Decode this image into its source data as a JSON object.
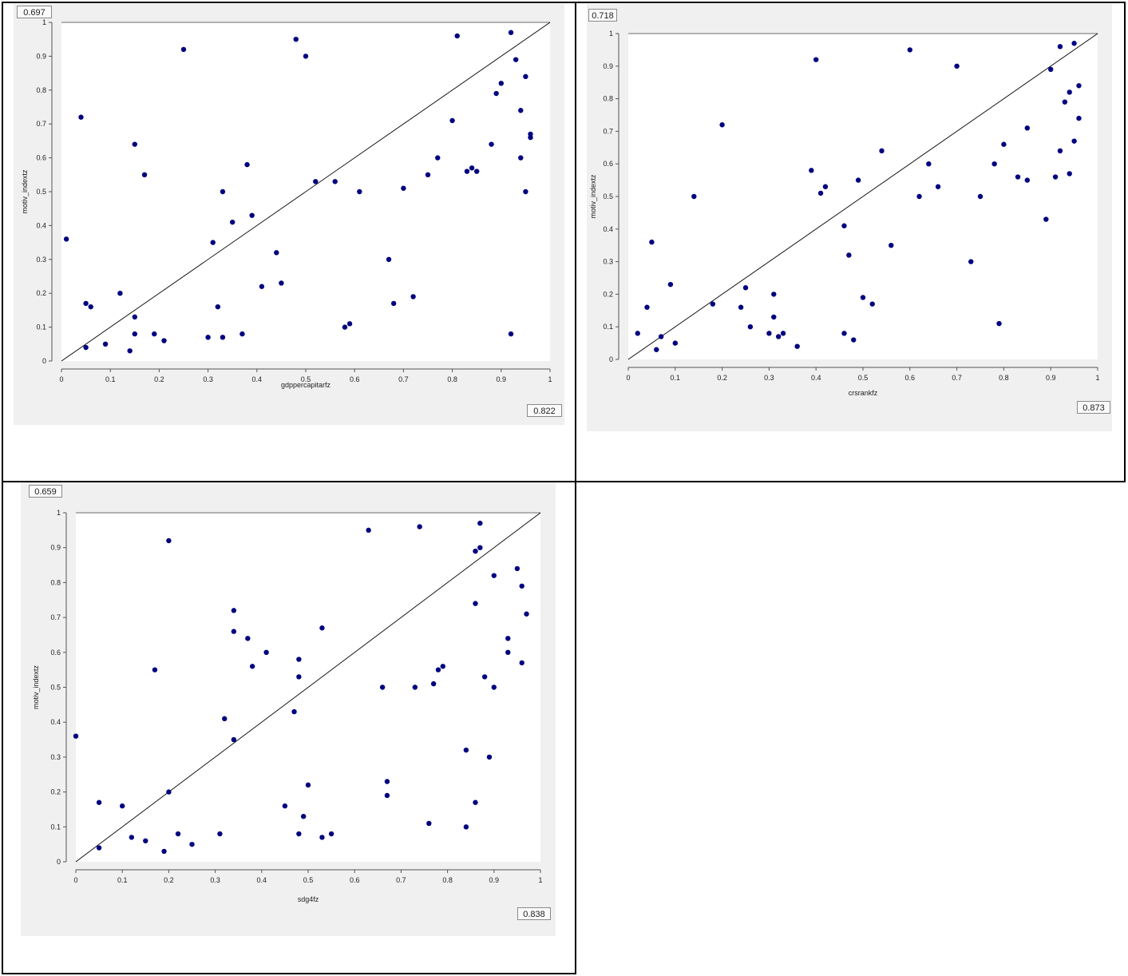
{
  "colors": {
    "point": "#00007f",
    "line": "#000000",
    "panel_bg": "#f0f0f0",
    "plot_bg": "#ffffff",
    "border": "#000000"
  },
  "panels": [
    {
      "corner_value": "0.697",
      "r_value": "0.822",
      "chart_data": {
        "type": "scatter",
        "xlabel": "gdppercapitarfz",
        "ylabel": "motiv_indextz",
        "xlim": [
          0,
          1
        ],
        "ylim": [
          0,
          1
        ],
        "x_ticks": [
          "0",
          "0.1",
          "0.2",
          "0.3",
          "0.4",
          "0.5",
          "0.6",
          "0.7",
          "0.8",
          "0.9",
          "1"
        ],
        "y_ticks": [
          "0",
          "0.1",
          "0.2",
          "0.3",
          "0.4",
          "0.5",
          "0.6",
          "0.7",
          "0.8",
          "0.9",
          "1"
        ],
        "reference_line": [
          [
            0,
            0
          ],
          [
            1,
            1
          ]
        ],
        "points": [
          [
            0.01,
            0.36
          ],
          [
            0.04,
            0.72
          ],
          [
            0.05,
            0.17
          ],
          [
            0.05,
            0.04
          ],
          [
            0.06,
            0.16
          ],
          [
            0.09,
            0.05
          ],
          [
            0.12,
            0.2
          ],
          [
            0.14,
            0.03
          ],
          [
            0.15,
            0.64
          ],
          [
            0.15,
            0.13
          ],
          [
            0.15,
            0.08
          ],
          [
            0.17,
            0.55
          ],
          [
            0.19,
            0.08
          ],
          [
            0.21,
            0.06
          ],
          [
            0.25,
            0.92
          ],
          [
            0.3,
            0.07
          ],
          [
            0.31,
            0.35
          ],
          [
            0.32,
            0.16
          ],
          [
            0.33,
            0.5
          ],
          [
            0.33,
            0.07
          ],
          [
            0.35,
            0.41
          ],
          [
            0.37,
            0.08
          ],
          [
            0.38,
            0.58
          ],
          [
            0.39,
            0.43
          ],
          [
            0.41,
            0.22
          ],
          [
            0.44,
            0.32
          ],
          [
            0.45,
            0.23
          ],
          [
            0.48,
            0.95
          ],
          [
            0.5,
            0.9
          ],
          [
            0.52,
            0.53
          ],
          [
            0.56,
            0.53
          ],
          [
            0.58,
            0.1
          ],
          [
            0.59,
            0.11
          ],
          [
            0.61,
            0.5
          ],
          [
            0.67,
            0.3
          ],
          [
            0.68,
            0.17
          ],
          [
            0.7,
            0.51
          ],
          [
            0.72,
            0.19
          ],
          [
            0.75,
            0.55
          ],
          [
            0.77,
            0.6
          ],
          [
            0.8,
            0.71
          ],
          [
            0.81,
            0.96
          ],
          [
            0.83,
            0.56
          ],
          [
            0.84,
            0.57
          ],
          [
            0.85,
            0.56
          ],
          [
            0.88,
            0.64
          ],
          [
            0.89,
            0.79
          ],
          [
            0.9,
            0.82
          ],
          [
            0.92,
            0.97
          ],
          [
            0.92,
            0.08
          ],
          [
            0.93,
            0.89
          ],
          [
            0.94,
            0.74
          ],
          [
            0.94,
            0.6
          ],
          [
            0.95,
            0.84
          ],
          [
            0.95,
            0.5
          ],
          [
            0.96,
            0.67
          ],
          [
            0.96,
            0.66
          ]
        ]
      }
    },
    {
      "corner_value": "0.718",
      "r_value": "0.873",
      "chart_data": {
        "type": "scatter",
        "xlabel": "crsrankfz",
        "ylabel": "motiv_indextz",
        "xlim": [
          0,
          1
        ],
        "ylim": [
          0,
          1
        ],
        "x_ticks": [
          "0",
          "0.1",
          "0.2",
          "0.3",
          "0.4",
          "0.5",
          "0.6",
          "0.7",
          "0.8",
          "0.9",
          "1"
        ],
        "y_ticks": [
          "0",
          "0.1",
          "0.2",
          "0.3",
          "0.4",
          "0.5",
          "0.6",
          "0.7",
          "0.8",
          "0.9",
          "1"
        ],
        "reference_line": [
          [
            0,
            0
          ],
          [
            1,
            1
          ]
        ],
        "points": [
          [
            0.02,
            0.08
          ],
          [
            0.04,
            0.16
          ],
          [
            0.05,
            0.36
          ],
          [
            0.06,
            0.03
          ],
          [
            0.07,
            0.07
          ],
          [
            0.09,
            0.23
          ],
          [
            0.1,
            0.05
          ],
          [
            0.14,
            0.5
          ],
          [
            0.18,
            0.17
          ],
          [
            0.2,
            0.72
          ],
          [
            0.24,
            0.16
          ],
          [
            0.25,
            0.22
          ],
          [
            0.26,
            0.1
          ],
          [
            0.3,
            0.08
          ],
          [
            0.31,
            0.2
          ],
          [
            0.31,
            0.13
          ],
          [
            0.32,
            0.07
          ],
          [
            0.33,
            0.08
          ],
          [
            0.36,
            0.04
          ],
          [
            0.39,
            0.58
          ],
          [
            0.4,
            0.92
          ],
          [
            0.41,
            0.51
          ],
          [
            0.42,
            0.53
          ],
          [
            0.46,
            0.41
          ],
          [
            0.46,
            0.08
          ],
          [
            0.47,
            0.32
          ],
          [
            0.48,
            0.06
          ],
          [
            0.49,
            0.55
          ],
          [
            0.5,
            0.19
          ],
          [
            0.52,
            0.17
          ],
          [
            0.54,
            0.64
          ],
          [
            0.56,
            0.35
          ],
          [
            0.6,
            0.95
          ],
          [
            0.62,
            0.5
          ],
          [
            0.64,
            0.6
          ],
          [
            0.66,
            0.53
          ],
          [
            0.7,
            0.9
          ],
          [
            0.73,
            0.3
          ],
          [
            0.75,
            0.5
          ],
          [
            0.78,
            0.6
          ],
          [
            0.79,
            0.11
          ],
          [
            0.8,
            0.66
          ],
          [
            0.83,
            0.56
          ],
          [
            0.85,
            0.71
          ],
          [
            0.85,
            0.55
          ],
          [
            0.89,
            0.43
          ],
          [
            0.9,
            0.89
          ],
          [
            0.91,
            0.56
          ],
          [
            0.92,
            0.96
          ],
          [
            0.92,
            0.64
          ],
          [
            0.93,
            0.79
          ],
          [
            0.94,
            0.82
          ],
          [
            0.94,
            0.57
          ],
          [
            0.95,
            0.97
          ],
          [
            0.95,
            0.67
          ],
          [
            0.96,
            0.84
          ],
          [
            0.96,
            0.74
          ]
        ]
      }
    },
    {
      "corner_value": "0.659",
      "r_value": "0.838",
      "chart_data": {
        "type": "scatter",
        "xlabel": "sdg4fz",
        "ylabel": "motiv_indextz",
        "xlim": [
          0,
          1
        ],
        "ylim": [
          0,
          1
        ],
        "x_ticks": [
          "0",
          "0.1",
          "0.2",
          "0.3",
          "0.4",
          "0.5",
          "0.6",
          "0.7",
          "0.8",
          "0.9",
          "1"
        ],
        "y_ticks": [
          "0",
          "0.1",
          "0.2",
          "0.3",
          "0.4",
          "0.5",
          "0.6",
          "0.7",
          "0.8",
          "0.9",
          "1"
        ],
        "reference_line": [
          [
            0,
            0
          ],
          [
            1,
            1
          ]
        ],
        "points": [
          [
            0.0,
            0.36
          ],
          [
            0.05,
            0.17
          ],
          [
            0.05,
            0.04
          ],
          [
            0.1,
            0.16
          ],
          [
            0.12,
            0.07
          ],
          [
            0.15,
            0.06
          ],
          [
            0.17,
            0.55
          ],
          [
            0.19,
            0.03
          ],
          [
            0.2,
            0.92
          ],
          [
            0.2,
            0.2
          ],
          [
            0.22,
            0.08
          ],
          [
            0.25,
            0.05
          ],
          [
            0.31,
            0.08
          ],
          [
            0.32,
            0.41
          ],
          [
            0.34,
            0.72
          ],
          [
            0.34,
            0.66
          ],
          [
            0.34,
            0.35
          ],
          [
            0.37,
            0.64
          ],
          [
            0.38,
            0.56
          ],
          [
            0.41,
            0.6
          ],
          [
            0.45,
            0.16
          ],
          [
            0.47,
            0.43
          ],
          [
            0.48,
            0.58
          ],
          [
            0.48,
            0.53
          ],
          [
            0.48,
            0.08
          ],
          [
            0.49,
            0.13
          ],
          [
            0.5,
            0.22
          ],
          [
            0.53,
            0.67
          ],
          [
            0.53,
            0.07
          ],
          [
            0.55,
            0.08
          ],
          [
            0.63,
            0.95
          ],
          [
            0.66,
            0.5
          ],
          [
            0.67,
            0.23
          ],
          [
            0.67,
            0.19
          ],
          [
            0.73,
            0.5
          ],
          [
            0.74,
            0.96
          ],
          [
            0.76,
            0.11
          ],
          [
            0.77,
            0.51
          ],
          [
            0.78,
            0.55
          ],
          [
            0.79,
            0.56
          ],
          [
            0.84,
            0.32
          ],
          [
            0.84,
            0.1
          ],
          [
            0.86,
            0.89
          ],
          [
            0.86,
            0.74
          ],
          [
            0.86,
            0.17
          ],
          [
            0.87,
            0.97
          ],
          [
            0.87,
            0.9
          ],
          [
            0.88,
            0.53
          ],
          [
            0.89,
            0.3
          ],
          [
            0.9,
            0.82
          ],
          [
            0.9,
            0.5
          ],
          [
            0.93,
            0.64
          ],
          [
            0.93,
            0.6
          ],
          [
            0.95,
            0.84
          ],
          [
            0.96,
            0.79
          ],
          [
            0.96,
            0.57
          ],
          [
            0.97,
            0.71
          ]
        ]
      }
    }
  ]
}
